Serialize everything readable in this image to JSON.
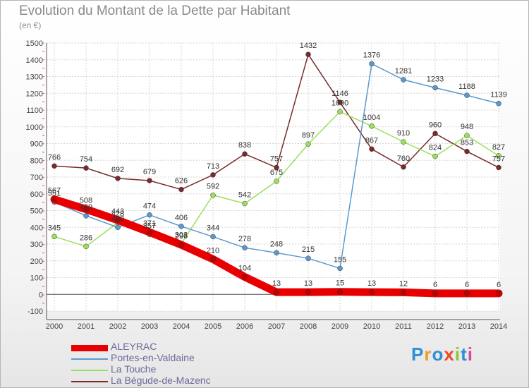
{
  "title": "Evolution du Montant de la Dette par Habitant",
  "unit": "(en €)",
  "brand": {
    "text": "Proxiti",
    "colors": [
      "#2f8fd8",
      "#e8a02a",
      "#2f8fd8",
      "#e84a2a",
      "#8cc43a",
      "#2f8fd8",
      "#d84a9a"
    ]
  },
  "chart_data": {
    "type": "line",
    "x": [
      "2000",
      "2001",
      "2002",
      "2003",
      "2004",
      "2005",
      "2006",
      "2007",
      "2008",
      "2009",
      "2010",
      "2011",
      "2012",
      "2013",
      "2014"
    ],
    "ylim": [
      -100,
      1500
    ],
    "yticks": [
      -100,
      0,
      100,
      200,
      300,
      400,
      500,
      600,
      700,
      800,
      900,
      1000,
      1100,
      1200,
      1300,
      1400,
      1500
    ],
    "grid": true,
    "legend_position": "bottom-left",
    "series": [
      {
        "name": "La Bégude-de-Mazenc",
        "color": "#7a2a2a",
        "emphasis": false,
        "values": [
          766,
          754,
          692,
          679,
          626,
          713,
          838,
          757,
          1432,
          1146,
          867,
          760,
          960,
          853,
          757
        ]
      },
      {
        "name": "La Touche",
        "color": "#9be05a",
        "emphasis": false,
        "values": [
          345,
          286,
          428,
          357,
          303,
          592,
          542,
          675,
          897,
          1090,
          1004,
          910,
          824,
          948,
          827
        ]
      },
      {
        "name": "Portes-en-Valdaine",
        "color": "#5a9ad0",
        "emphasis": false,
        "values": [
          551,
          469,
          400,
          474,
          406,
          344,
          278,
          248,
          215,
          155,
          1376,
          1281,
          1233,
          1188,
          1139
        ]
      },
      {
        "name": "ALEYRAC",
        "color": "#e80000",
        "emphasis": true,
        "values": [
          567,
          508,
          443,
          371,
          296,
          210,
          104,
          13,
          13,
          15,
          13,
          12,
          6,
          6,
          6
        ]
      }
    ]
  },
  "legend": [
    {
      "label": "ALEYRAC",
      "color": "#e80000"
    },
    {
      "label": "Portes-en-Valdaine",
      "color": "#5a9ad0"
    },
    {
      "label": "La Touche",
      "color": "#9be05a"
    },
    {
      "label": "La Bégude-de-Mazenc",
      "color": "#7a2a2a"
    }
  ]
}
